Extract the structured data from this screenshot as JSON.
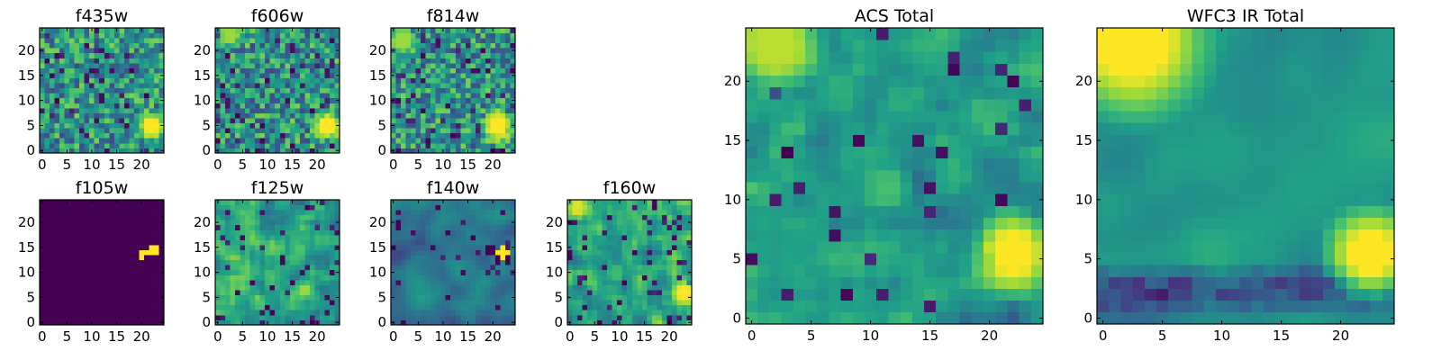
{
  "chart_data": [
    {
      "id": "f435w",
      "type": "heatmap",
      "title": "f435w",
      "grid_size": 25,
      "xlim": [
        0,
        25
      ],
      "ylim": [
        0,
        25
      ],
      "xticks": [
        0,
        5,
        10,
        15,
        20
      ],
      "yticks": [
        0,
        5,
        10,
        15,
        20
      ],
      "pattern": "noise",
      "seed": 11,
      "hotspots": [
        {
          "x": 22.5,
          "y": 5.5,
          "radius": 2.0,
          "value": 1.0
        }
      ],
      "dark_fraction": 0.06
    },
    {
      "id": "f606w",
      "type": "heatmap",
      "title": "f606w",
      "grid_size": 25,
      "xlim": [
        0,
        25
      ],
      "ylim": [
        0,
        25
      ],
      "xticks": [
        0,
        5,
        10,
        15,
        20
      ],
      "yticks": [
        0,
        5,
        10,
        15,
        20
      ],
      "pattern": "noise",
      "seed": 23,
      "hotspots": [
        {
          "x": 22.5,
          "y": 5.5,
          "radius": 2.2,
          "value": 1.0
        },
        {
          "x": 3,
          "y": 23.5,
          "radius": 1.6,
          "value": 0.85
        }
      ],
      "dark_fraction": 0.08
    },
    {
      "id": "f814w",
      "type": "heatmap",
      "title": "f814w",
      "grid_size": 25,
      "xlim": [
        0,
        25
      ],
      "ylim": [
        0,
        25
      ],
      "xticks": [
        0,
        5,
        10,
        15,
        20
      ],
      "yticks": [
        0,
        5,
        10,
        15,
        20
      ],
      "pattern": "noise",
      "seed": 37,
      "hotspots": [
        {
          "x": 21.5,
          "y": 5.5,
          "radius": 2.4,
          "value": 1.0
        },
        {
          "x": 2.5,
          "y": 22.5,
          "radius": 2.0,
          "value": 0.85
        }
      ],
      "dark_fraction": 0.07
    },
    {
      "id": "f105w",
      "type": "heatmap",
      "title": "f105w",
      "grid_size": 25,
      "xlim": [
        0,
        25
      ],
      "ylim": [
        0,
        25
      ],
      "xticks": [
        0,
        5,
        10,
        15,
        20
      ],
      "yticks": [
        0,
        5,
        10,
        15,
        20
      ],
      "pattern": "flat",
      "seed": 41,
      "background": 0.0,
      "bright_pixels": [
        [
          22,
          15
        ],
        [
          23,
          15
        ],
        [
          20,
          14
        ],
        [
          21,
          14
        ],
        [
          22,
          14
        ],
        [
          23,
          14
        ],
        [
          20,
          13
        ]
      ]
    },
    {
      "id": "f125w",
      "type": "heatmap",
      "title": "f125w",
      "grid_size": 25,
      "xlim": [
        0,
        25
      ],
      "ylim": [
        0,
        25
      ],
      "xticks": [
        0,
        5,
        10,
        15,
        20
      ],
      "yticks": [
        0,
        5,
        10,
        15,
        20
      ],
      "pattern": "smooth",
      "seed": 53,
      "hotspots": [],
      "dark_fraction": 0.07
    },
    {
      "id": "f140w",
      "type": "heatmap",
      "title": "f140w",
      "grid_size": 25,
      "xlim": [
        0,
        25
      ],
      "ylim": [
        0,
        25
      ],
      "xticks": [
        0,
        5,
        10,
        15,
        20
      ],
      "yticks": [
        0,
        5,
        10,
        15,
        20
      ],
      "pattern": "smooth-dim",
      "seed": 67,
      "bright_pixels": [
        [
          22,
          15
        ],
        [
          21,
          14
        ],
        [
          22,
          14
        ],
        [
          23,
          14
        ],
        [
          22,
          13
        ]
      ],
      "dark_pixels": [
        [
          19,
          15
        ],
        [
          20,
          15
        ],
        [
          19,
          14
        ],
        [
          20,
          14
        ],
        [
          21,
          13
        ],
        [
          23,
          13
        ],
        [
          21,
          12
        ],
        [
          23,
          12
        ]
      ],
      "dark_fraction": 0.04
    },
    {
      "id": "f160w",
      "type": "heatmap",
      "title": "f160w",
      "grid_size": 25,
      "xlim": [
        0,
        25
      ],
      "ylim": [
        0,
        25
      ],
      "xticks": [
        0,
        5,
        10,
        15,
        20
      ],
      "yticks": [
        0,
        5,
        10,
        15,
        20
      ],
      "pattern": "smooth",
      "seed": 79,
      "hotspots": [
        {
          "x": 23.5,
          "y": 6.5,
          "radius": 1.8,
          "value": 1.0
        },
        {
          "x": 2,
          "y": 23.5,
          "radius": 1.6,
          "value": 0.95
        }
      ],
      "dark_fraction": 0.09
    },
    {
      "id": "acs_total",
      "type": "heatmap",
      "title": "ACS Total",
      "grid_size": 25,
      "xlim": [
        0,
        25
      ],
      "ylim": [
        0,
        25
      ],
      "xticks": [
        0,
        5,
        10,
        15,
        20
      ],
      "yticks": [
        0,
        5,
        10,
        15,
        20
      ],
      "pattern": "noise-soft",
      "seed": 83,
      "hotspots": [
        {
          "x": 22.5,
          "y": 6.0,
          "radius": 2.4,
          "value": 1.0
        },
        {
          "x": 2.5,
          "y": 23.5,
          "radius": 2.6,
          "value": 0.9
        },
        {
          "x": 12,
          "y": 11.5,
          "radius": 1.4,
          "value": 0.7
        }
      ],
      "dark_fraction": 0.05
    },
    {
      "id": "wfc3_ir_total",
      "type": "heatmap",
      "title": "WFC3 IR Total",
      "grid_size": 25,
      "xlim": [
        0,
        25
      ],
      "ylim": [
        0,
        25
      ],
      "xticks": [
        0,
        5,
        10,
        15,
        20
      ],
      "yticks": [
        0,
        5,
        10,
        15,
        20
      ],
      "pattern": "very-smooth",
      "seed": 97,
      "hotspots": [
        {
          "x": 23.0,
          "y": 6.0,
          "radius": 2.6,
          "value": 1.0
        },
        {
          "x": 3.0,
          "y": 24.0,
          "radius": 4.5,
          "value": 1.0
        }
      ],
      "dark_fraction": 0.0,
      "dark_band": {
        "y": 2.5,
        "strength": 0.35
      }
    }
  ],
  "colormap": [
    "#440154",
    "#46327e",
    "#365c8d",
    "#277f8e",
    "#1fa187",
    "#4ac16d",
    "#a0da39",
    "#fde725"
  ]
}
